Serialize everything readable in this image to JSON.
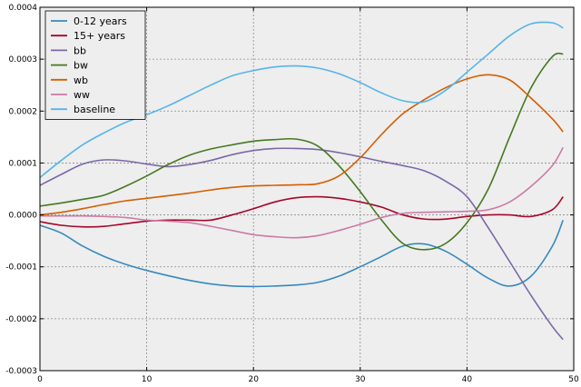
{
  "chart_data": {
    "type": "line",
    "title": "",
    "xlabel": "",
    "ylabel": "",
    "xlim": [
      0,
      50
    ],
    "ylim": [
      -0.0003,
      0.0004
    ],
    "xticks": [
      0,
      10,
      20,
      30,
      40,
      50
    ],
    "xtick_labels": [
      "0",
      "10",
      "20",
      "30",
      "40",
      "50"
    ],
    "yticks": [
      -0.0003,
      -0.0002,
      -0.0001,
      0.0,
      0.0001,
      0.0002,
      0.0003,
      0.0004
    ],
    "ytick_labels": [
      "-0.0003",
      "-0.0002",
      "-0.0001",
      "0.0000",
      "0.0001",
      "0.0002",
      "0.0003",
      "0.0004"
    ],
    "grid": true,
    "legend_position": "top-left",
    "background": "#eeeeee",
    "x": [
      0,
      2,
      4,
      6,
      8,
      10,
      12,
      14,
      16,
      18,
      20,
      22,
      24,
      26,
      28,
      30,
      32,
      34,
      36,
      38,
      40,
      42,
      44,
      46,
      48,
      49
    ],
    "series": [
      {
        "name": "0-12 years",
        "color": "#348abd",
        "values": [
          -2e-05,
          -3.5e-05,
          -6e-05,
          -8e-05,
          -9.5e-05,
          -0.000107,
          -0.000117,
          -0.000126,
          -0.000133,
          -0.000137,
          -0.000138,
          -0.000137,
          -0.000135,
          -0.00013,
          -0.000118,
          -0.0001,
          -8e-05,
          -6e-05,
          -5.6e-05,
          -7e-05,
          -9.5e-05,
          -0.000122,
          -0.000137,
          -0.000118,
          -6e-05,
          -1e-05
        ]
      },
      {
        "name": "15+ years",
        "color": "#a60628",
        "values": [
          -1.3e-05,
          -2e-05,
          -2.3e-05,
          -2.2e-05,
          -1.7e-05,
          -1.2e-05,
          -1e-05,
          -1e-05,
          -1e-05,
          0.0,
          1.2e-05,
          2.5e-05,
          3.3e-05,
          3.5e-05,
          3.2e-05,
          2.5e-05,
          1.5e-05,
          0.0,
          -8e-06,
          -8e-06,
          -3e-06,
          0.0,
          0.0,
          -3e-06,
          1e-05,
          3.5e-05
        ]
      },
      {
        "name": "bb",
        "color": "#7a68a6",
        "values": [
          5.7e-05,
          7.8e-05,
          9.8e-05,
          0.000106,
          0.000104,
          9.8e-05,
          9.3e-05,
          9.7e-05,
          0.000105,
          0.000116,
          0.000124,
          0.000128,
          0.000128,
          0.000126,
          0.00012,
          0.000112,
          0.000103,
          9.5e-05,
          8.5e-05,
          6.5e-05,
          3.5e-05,
          -2.5e-05,
          -9e-05,
          -0.000155,
          -0.000215,
          -0.00024
        ]
      },
      {
        "name": "bw",
        "color": "#467821",
        "values": [
          1.7e-05,
          2.3e-05,
          3e-05,
          3.8e-05,
          5.5e-05,
          7.5e-05,
          9.7e-05,
          0.000115,
          0.000127,
          0.000135,
          0.000142,
          0.000145,
          0.000146,
          0.000133,
          9.5e-05,
          4.5e-05,
          -1e-05,
          -5.5e-05,
          -6.7e-05,
          -5.5e-05,
          -1.5e-05,
          5e-05,
          0.00015,
          0.000245,
          0.000305,
          0.00031
        ]
      },
      {
        "name": "wb",
        "color": "#d55e00",
        "values": [
          0.0,
          5e-06,
          1.2e-05,
          2e-05,
          2.7e-05,
          3.2e-05,
          3.7e-05,
          4.2e-05,
          4.8e-05,
          5.3e-05,
          5.6e-05,
          5.7e-05,
          5.8e-05,
          6e-05,
          7.5e-05,
          0.00011,
          0.000155,
          0.000195,
          0.000222,
          0.000245,
          0.000262,
          0.00027,
          0.00026,
          0.000225,
          0.000185,
          0.00016
        ]
      },
      {
        "name": "ww",
        "color": "#cc79a7",
        "values": [
          -2e-06,
          -2e-06,
          -2e-06,
          -3e-06,
          -5e-06,
          -1e-05,
          -1.2e-05,
          -1.5e-05,
          -2.2e-05,
          -3e-05,
          -3.8e-05,
          -4.2e-05,
          -4.4e-05,
          -4e-05,
          -3e-05,
          -1.8e-05,
          -5e-06,
          3e-06,
          5e-06,
          6e-06,
          7e-06,
          1e-05,
          2.5e-05,
          5.5e-05,
          9.5e-05,
          0.00013
        ]
      },
      {
        "name": "baseline",
        "color": "#56b4e9",
        "values": [
          7.2e-05,
          0.000105,
          0.000135,
          0.000158,
          0.000178,
          0.000193,
          0.00021,
          0.00023,
          0.00025,
          0.000268,
          0.000278,
          0.000285,
          0.000287,
          0.000283,
          0.000272,
          0.000255,
          0.000235,
          0.00022,
          0.000218,
          0.00024,
          0.000275,
          0.00031,
          0.000345,
          0.000368,
          0.00037,
          0.00036
        ]
      }
    ]
  }
}
